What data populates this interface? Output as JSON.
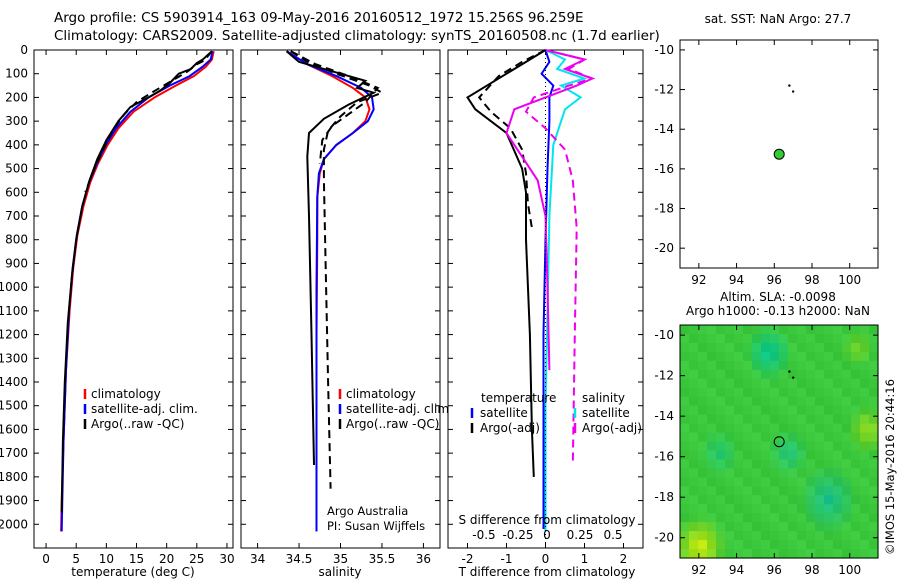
{
  "header": {
    "line1": "Argo profile: CS 5903914_163 09-May-2016 20160512_1972 15.256S 96.259E",
    "line2": "Climatology: CARS2009. Satellite-adjusted climatology: synTS_20160508.nc (1.7d earlier)"
  },
  "colors": {
    "clim": "#ff0000",
    "sat": "#0000ff",
    "argo": "#000000",
    "sat_s": "#00e5ee",
    "argo_s": "#ee00ee",
    "green": "#33cc33"
  },
  "chart_data": [
    {
      "id": "temperature",
      "type": "line",
      "xlabel": "temperature (deg C)",
      "xlim": [
        -2,
        31
      ],
      "xticks": [
        0,
        5,
        10,
        15,
        20,
        25,
        30
      ],
      "ylim": [
        0,
        2100
      ],
      "yticks": [
        0,
        100,
        200,
        300,
        400,
        500,
        600,
        700,
        800,
        900,
        1000,
        1100,
        1200,
        1300,
        1400,
        1500,
        1600,
        1700,
        1800,
        1900,
        2000
      ],
      "legend": [
        "climatology",
        "satellite-adj. clim.",
        "Argo(..raw -QC)"
      ],
      "series": [
        {
          "role": "climatology",
          "color": "#ff0000",
          "style": "solid",
          "x": [
            27.8,
            27.5,
            26.5,
            24.5,
            21.5,
            18,
            14.5,
            12,
            10.2,
            8.6,
            7.3,
            6.2,
            5.2,
            4.5,
            3.9,
            3.3,
            2.9,
            2.6,
            2.5
          ],
          "y": [
            5,
            40,
            70,
            110,
            150,
            200,
            260,
            330,
            400,
            480,
            560,
            660,
            780,
            920,
            1100,
            1350,
            1650,
            1900,
            2030
          ]
        },
        {
          "role": "satellite-adj. clim.",
          "color": "#0000ff",
          "style": "solid",
          "x": [
            27.6,
            27.3,
            26,
            23.8,
            20.5,
            17,
            14,
            11.6,
            9.9,
            8.4,
            7.1,
            6,
            5.1,
            4.4,
            3.8,
            3.3,
            2.9,
            2.7,
            2.6
          ],
          "y": [
            5,
            40,
            70,
            110,
            150,
            200,
            260,
            330,
            400,
            480,
            560,
            660,
            780,
            920,
            1100,
            1350,
            1650,
            1900,
            2030
          ]
        },
        {
          "role": "Argo",
          "color": "#000000",
          "style": "solid",
          "x": [
            27.5,
            26,
            25,
            24,
            22,
            20.5,
            19,
            17,
            14,
            12,
            10,
            8.5,
            7.2,
            6,
            5,
            4.3,
            3.6,
            3.1,
            2.8,
            2.6
          ],
          "y": [
            5,
            40,
            55,
            80,
            100,
            140,
            170,
            200,
            240,
            300,
            380,
            460,
            550,
            660,
            800,
            950,
            1150,
            1400,
            1650,
            1950
          ]
        },
        {
          "role": "Argo raw",
          "color": "#000000",
          "style": "dashed",
          "x": [
            27.5,
            26.2,
            25,
            23.5,
            21.5,
            19.5,
            17.5,
            15,
            13,
            11,
            9.5,
            8,
            6.5
          ],
          "y": [
            5,
            45,
            60,
            90,
            120,
            150,
            180,
            220,
            270,
            340,
            420,
            500,
            600
          ]
        }
      ]
    },
    {
      "id": "salinity",
      "type": "line",
      "xlabel": "salinity",
      "xlim": [
        33.8,
        36.2
      ],
      "xticks": [
        34,
        34.5,
        35,
        35.5,
        36
      ],
      "ylim": [
        0,
        2100
      ],
      "legend": [
        "climatology",
        "satellite-adj. clim.",
        "Argo(..raw -QC)"
      ],
      "annotation": [
        "Argo Australia",
        "PI: Susan Wijffels"
      ],
      "series": [
        {
          "role": "climatology",
          "color": "#ff0000",
          "style": "solid",
          "x": [
            34.35,
            34.6,
            34.9,
            35.15,
            35.3,
            35.35,
            35.3,
            35.15,
            34.95,
            34.8,
            34.75,
            34.72,
            34.72,
            34.71,
            34.71
          ],
          "y": [
            5,
            60,
            110,
            160,
            200,
            250,
            300,
            350,
            400,
            460,
            520,
            620,
            800,
            1200,
            2030
          ]
        },
        {
          "role": "satellite-adj. clim.",
          "color": "#0000ff",
          "style": "solid",
          "x": [
            34.35,
            34.6,
            34.95,
            35.25,
            35.38,
            35.4,
            35.33,
            35.15,
            34.95,
            34.8,
            34.74,
            34.72,
            34.71,
            34.71
          ],
          "y": [
            5,
            60,
            110,
            160,
            200,
            250,
            300,
            350,
            400,
            460,
            520,
            620,
            1000,
            2030
          ]
        },
        {
          "role": "Argo",
          "color": "#000000",
          "style": "solid",
          "x": [
            34.35,
            34.5,
            34.9,
            35.3,
            35.2,
            35.4,
            35.1,
            34.8,
            34.62,
            34.6,
            34.62,
            34.65,
            34.68
          ],
          "y": [
            5,
            50,
            90,
            130,
            160,
            180,
            230,
            290,
            350,
            450,
            700,
            1200,
            1750
          ]
        },
        {
          "role": "Argo raw",
          "color": "#000000",
          "style": "dashed",
          "x": [
            34.4,
            34.6,
            34.95,
            35.35,
            35.5,
            35.2,
            35,
            34.85,
            34.8,
            34.8,
            34.82,
            34.85,
            34.88
          ],
          "y": [
            5,
            50,
            100,
            150,
            180,
            220,
            280,
            340,
            420,
            550,
            900,
            1400,
            1850
          ]
        },
        {
          "role": "Argo raw 2",
          "color": "#000000",
          "style": "dashed",
          "x": [
            34.4,
            34.7,
            35.1,
            35.45,
            35.3,
            35.1,
            34.9,
            34.78,
            34.75
          ],
          "y": [
            5,
            60,
            110,
            160,
            220,
            270,
            320,
            380,
            480
          ]
        }
      ]
    },
    {
      "id": "difference",
      "type": "line",
      "xlabel": "T difference from climatology",
      "xlabel_top": "S difference from climatology",
      "xlim": [
        -2.5,
        2.5
      ],
      "xticks": [
        -2,
        -1,
        0,
        1,
        2
      ],
      "xtick_labels_s": [
        "-0.5",
        "-0.25",
        "0",
        "0.25",
        "0.5"
      ],
      "ylim": [
        0,
        2100
      ],
      "legend": {
        "temperature": [
          "satellite",
          "Argo(-adj)"
        ],
        "salinity": [
          "satellite",
          "Argo(-adj)"
        ]
      },
      "series": [
        {
          "role": "T satellite",
          "color": "#0000ff",
          "style": "solid",
          "x": [
            0,
            0.1,
            -0.1,
            0.2,
            0.1,
            0.1,
            0.05,
            0,
            -0.05,
            -0.05,
            -0.05
          ],
          "y": [
            0,
            50,
            100,
            150,
            200,
            300,
            500,
            800,
            1200,
            1600,
            2020
          ]
        },
        {
          "role": "T Argo",
          "color": "#000000",
          "style": "solid",
          "x": [
            0,
            -0.5,
            -1,
            -2,
            -1.8,
            -1,
            -0.6,
            -0.5,
            -0.5,
            -0.4,
            -0.35,
            -0.3
          ],
          "y": [
            0,
            50,
            100,
            200,
            250,
            350,
            500,
            600,
            800,
            1200,
            1600,
            1800
          ]
        },
        {
          "role": "T Argo dashed",
          "color": "#000000",
          "style": "dashed",
          "x": [
            0,
            -0.6,
            -1.2,
            -1.7,
            -1.4,
            -0.9,
            -0.6,
            -0.5,
            -0.45,
            -0.35
          ],
          "y": [
            0,
            50,
            110,
            200,
            260,
            330,
            420,
            520,
            650,
            750
          ]
        },
        {
          "role": "S satellite",
          "color": "#00e5ee",
          "style": "solid",
          "x": [
            0,
            0.5,
            0.3,
            1,
            0.4,
            0.9,
            0.5,
            0.2,
            0.1,
            0.05,
            0,
            0
          ],
          "y": [
            0,
            40,
            80,
            120,
            150,
            200,
            250,
            400,
            700,
            1100,
            1500,
            2030
          ]
        },
        {
          "role": "S Argo",
          "color": "#ee00ee",
          "style": "solid",
          "x": [
            0,
            1,
            0.5,
            1.2,
            0.8,
            0,
            -0.8,
            -1,
            -0.6,
            -0.2,
            0,
            0.05,
            0.1
          ],
          "y": [
            0,
            40,
            80,
            120,
            150,
            200,
            250,
            350,
            450,
            550,
            700,
            1000,
            1350
          ]
        },
        {
          "role": "S Argo dashed",
          "color": "#ee00ee",
          "style": "dashed",
          "x": [
            0,
            1,
            0.6,
            1.2,
            0.6,
            -0.3,
            -0.5,
            0,
            0.5,
            0.7,
            0.8,
            0.75,
            0.7
          ],
          "y": [
            0,
            40,
            80,
            120,
            150,
            200,
            260,
            330,
            420,
            550,
            750,
            1200,
            1750
          ]
        }
      ]
    },
    {
      "id": "sst_map",
      "type": "scatter",
      "title": "sat. SST: NaN Argo: 27.7",
      "xlim": [
        91,
        101.5
      ],
      "xticks": [
        92,
        94,
        96,
        98,
        100
      ],
      "ylim": [
        -21,
        -9.5
      ],
      "yticks": [
        -10,
        -12,
        -14,
        -16,
        -18,
        -20
      ],
      "points": [
        {
          "role": "argo-position",
          "x": 96.26,
          "y": -15.26,
          "color": "#33cc33"
        },
        {
          "role": "track",
          "x": 96.8,
          "y": -11.8,
          "color": "#000000"
        },
        {
          "role": "track",
          "x": 97,
          "y": -12.1,
          "color": "#000000"
        }
      ]
    },
    {
      "id": "sla_map",
      "type": "heatmap",
      "title_line1": "Altim. SLA: -0.0098",
      "title_line2": "Argo h1000: -0.13 h2000: NaN",
      "xlim": [
        91,
        101.5
      ],
      "xticks": [
        92,
        94,
        96,
        98,
        100
      ],
      "ylim": [
        -21,
        -9.5
      ],
      "yticks": [
        -10,
        -12,
        -14,
        -16,
        -18,
        -20
      ],
      "points": [
        {
          "role": "argo-position",
          "x": 96.26,
          "y": -15.26
        },
        {
          "role": "track",
          "x": 96.8,
          "y": -11.8
        },
        {
          "role": "track",
          "x": 97,
          "y": -12.1
        }
      ],
      "side_label": "©IMOS 15-May-2016 20:44:16"
    }
  ]
}
